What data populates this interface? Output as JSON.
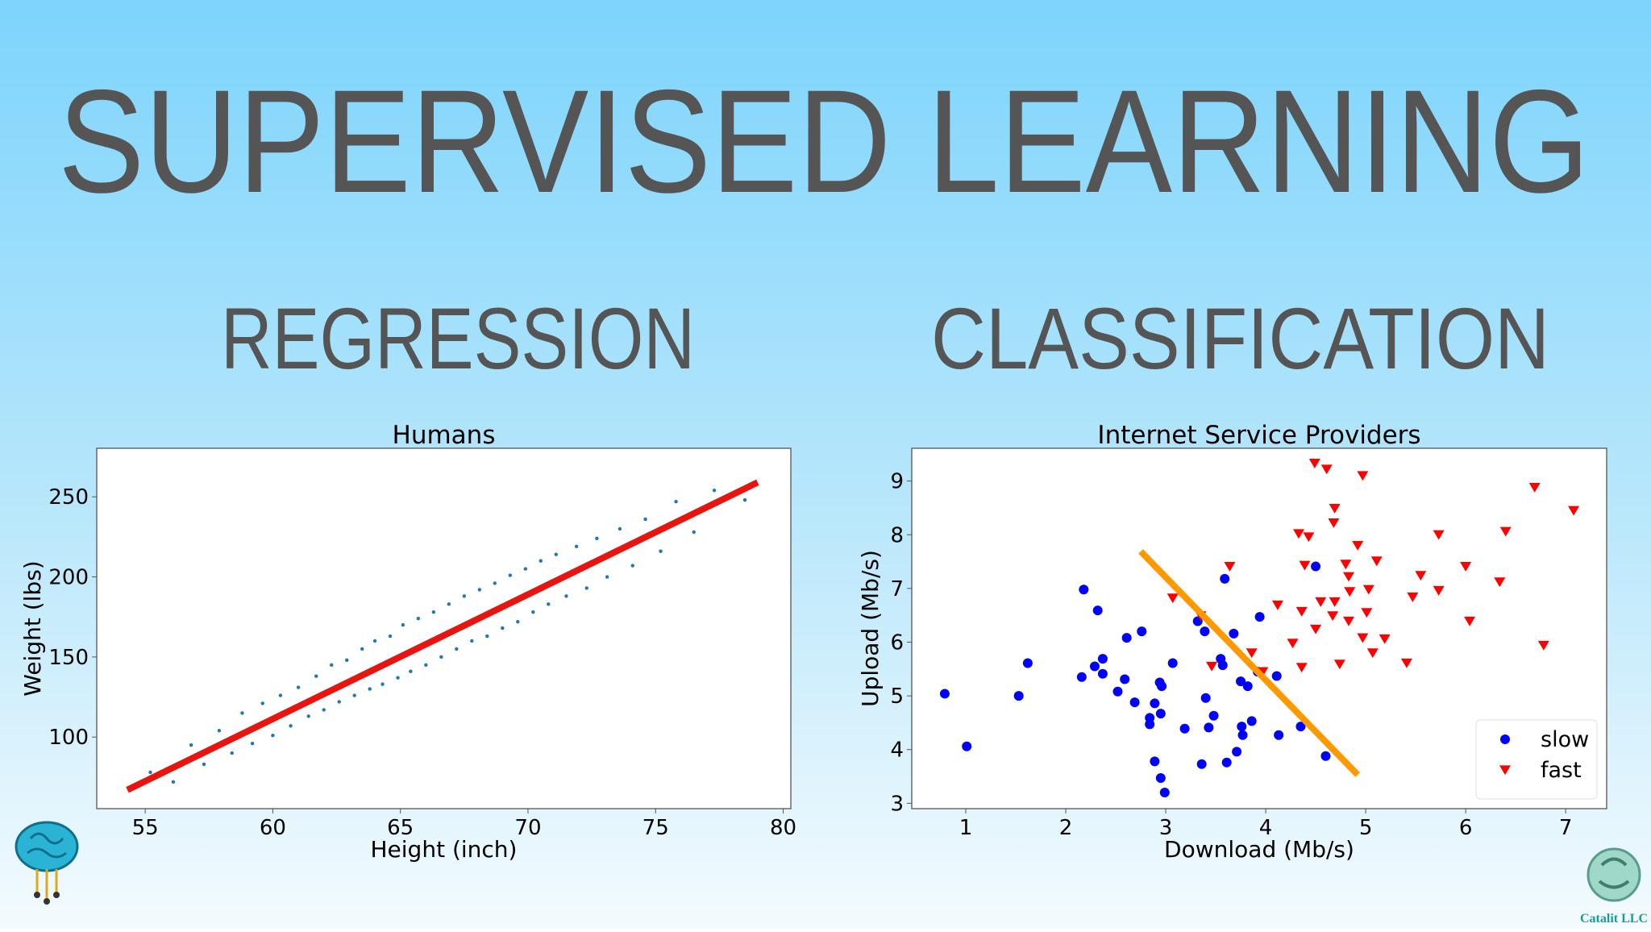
{
  "title": "SUPERVISED LEARNING",
  "sections": [
    "REGRESSION",
    "CLASSIFICATION"
  ],
  "footer": {
    "company": "Catalit LLC"
  },
  "chart_data": [
    {
      "type": "scatter",
      "title": "Humans",
      "x_label": "Height (inch)",
      "y_label": "Weight (lbs)",
      "xlim": [
        53.1,
        80.3
      ],
      "ylim": [
        55.3,
        280.3
      ],
      "xticks": [
        55,
        60,
        65,
        70,
        75,
        80
      ],
      "yticks": [
        100,
        150,
        200,
        250
      ],
      "grid": false,
      "series": [
        {
          "kind": "marker",
          "marker": "dot",
          "color": "#1f77b4",
          "x": [
            55.2,
            56.1,
            56.8,
            57.3,
            57.9,
            58.4,
            58.8,
            59.2,
            59.6,
            60.0,
            60.3,
            60.7,
            61.0,
            61.4,
            61.7,
            62.0,
            62.3,
            62.6,
            62.9,
            63.2,
            63.5,
            63.8,
            64.0,
            64.3,
            64.6,
            64.9,
            65.1,
            65.4,
            65.7,
            66.0,
            66.3,
            66.6,
            66.9,
            67.2,
            67.5,
            67.8,
            68.1,
            68.4,
            68.7,
            69.0,
            69.3,
            69.6,
            69.9,
            70.2,
            70.5,
            70.8,
            71.1,
            71.5,
            71.9,
            72.3,
            72.7,
            73.1,
            73.6,
            74.1,
            74.6,
            75.2,
            75.8,
            76.5,
            77.3,
            78.5
          ],
          "values": [
            78,
            72,
            95,
            83,
            104,
            90,
            115,
            96,
            121,
            101,
            126,
            107,
            131,
            113,
            138,
            117,
            145,
            122,
            148,
            126,
            155,
            130,
            160,
            133,
            163,
            137,
            170,
            141,
            174,
            145,
            178,
            150,
            183,
            155,
            188,
            160,
            192,
            163,
            196,
            168,
            201,
            172,
            205,
            178,
            210,
            183,
            214,
            188,
            219,
            193,
            224,
            200,
            230,
            207,
            236,
            216,
            247,
            228,
            254,
            248
          ]
        },
        {
          "kind": "line",
          "color": "#e8140f",
          "x": [
            54.3,
            79
          ],
          "values": [
            67,
            259
          ]
        }
      ]
    },
    {
      "type": "scatter",
      "title": "Internet Service Providers",
      "x_label": "Download (Mb/s)",
      "y_label": "Upload (Mb/s)",
      "xlim": [
        0.46,
        7.41
      ],
      "ylim": [
        2.9,
        9.61
      ],
      "xticks": [
        1,
        2,
        3,
        4,
        5,
        6,
        7
      ],
      "yticks": [
        3,
        4,
        5,
        6,
        7,
        8,
        9
      ],
      "grid": false,
      "legend": "lower right",
      "series": [
        {
          "name": "slow",
          "kind": "marker",
          "marker": "circle",
          "color": "#0000ff",
          "x": [
            0.79,
            1.01,
            1.53,
            1.62,
            2.18,
            2.32,
            2.16,
            2.29,
            2.37,
            2.37,
            2.52,
            2.61,
            2.59,
            2.76,
            2.69,
            2.84,
            2.84,
            2.89,
            2.94,
            2.96,
            2.95,
            2.89,
            2.95,
            2.99,
            3.07,
            3.19,
            3.32,
            3.39,
            3.4,
            3.43,
            3.36,
            3.48,
            3.55,
            3.57,
            3.59,
            3.61,
            3.68,
            3.71,
            3.76,
            3.77,
            3.75,
            3.82,
            3.86,
            3.94,
            3.92,
            4.11,
            4.13,
            4.35,
            4.5,
            4.6
          ],
          "values": [
            5.04,
            4.06,
            5.0,
            5.61,
            6.98,
            6.59,
            5.35,
            5.55,
            5.69,
            5.41,
            5.08,
            6.08,
            5.31,
            6.2,
            4.88,
            4.59,
            4.47,
            4.86,
            5.25,
            5.18,
            4.67,
            3.78,
            3.47,
            3.2,
            5.61,
            4.39,
            6.39,
            6.2,
            4.96,
            4.41,
            3.73,
            4.63,
            5.69,
            5.57,
            7.18,
            3.76,
            6.16,
            3.96,
            4.43,
            4.27,
            5.27,
            5.18,
            4.53,
            6.47,
            5.45,
            5.37,
            4.27,
            4.43,
            7.41,
            3.88
          ]
        },
        {
          "name": "fast",
          "kind": "marker",
          "marker": "triangle-down",
          "color": "#ff0000",
          "x": [
            4.49,
            4.61,
            4.97,
            6.69,
            7.08,
            4.69,
            4.68,
            4.33,
            4.43,
            4.39,
            4.92,
            5.73,
            6.4,
            3.64,
            4.8,
            5.11,
            6.0,
            4.83,
            5.55,
            6.34,
            4.12,
            4.36,
            4.55,
            4.69,
            4.84,
            5.03,
            5.47,
            5.73,
            3.07,
            3.35,
            4.83,
            5.01,
            4.5,
            4.67,
            6.04,
            4.97,
            5.19,
            5.07,
            3.86,
            4.27,
            3.46,
            4.36,
            4.74,
            5.41,
            6.78,
            3.97
          ],
          "values": [
            9.33,
            9.22,
            9.1,
            8.88,
            8.45,
            8.49,
            8.22,
            8.02,
            7.96,
            7.43,
            7.8,
            8.0,
            8.06,
            7.41,
            7.45,
            7.51,
            7.41,
            7.22,
            7.24,
            7.12,
            6.69,
            6.57,
            6.75,
            6.75,
            6.94,
            6.98,
            6.84,
            6.96,
            6.82,
            6.49,
            6.39,
            6.55,
            6.24,
            6.49,
            6.39,
            6.08,
            6.06,
            5.8,
            5.8,
            5.98,
            5.55,
            5.53,
            5.59,
            5.61,
            5.94,
            5.45
          ]
        },
        {
          "kind": "line",
          "color": "#ff9900",
          "x": [
            2.75,
            4.92
          ],
          "values": [
            7.69,
            3.53
          ]
        }
      ]
    }
  ]
}
